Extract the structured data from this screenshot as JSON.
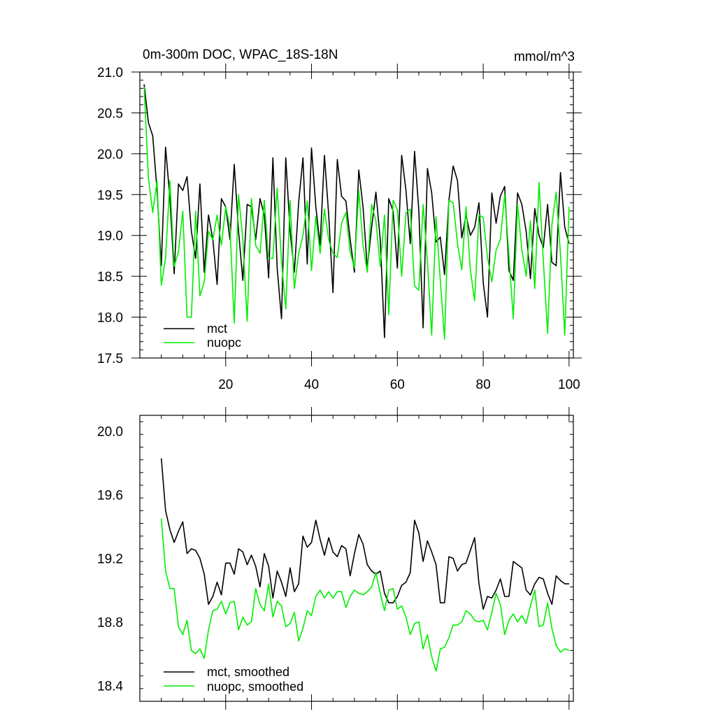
{
  "chart_data": [
    {
      "type": "line",
      "title": "0m-300m DOC, WPAC_18S-18N",
      "units": "mmol/m^3",
      "xlim": [
        0,
        101
      ],
      "ylim": [
        17.5,
        21.0
      ],
      "xticks": [
        20,
        40,
        60,
        80,
        100
      ],
      "yticks": [
        17.5,
        18.0,
        18.5,
        19.0,
        19.5,
        20.0,
        20.5,
        21.0
      ],
      "ytick_labels": [
        "17.5",
        "18.0",
        "18.5",
        "19.0",
        "19.5",
        "20.0",
        "20.5",
        "21.0"
      ],
      "legend_position": "bottom-left",
      "x": [
        1,
        2,
        3,
        4,
        5,
        6,
        7,
        8,
        9,
        10,
        11,
        12,
        13,
        14,
        15,
        16,
        17,
        18,
        19,
        20,
        21,
        22,
        23,
        24,
        25,
        26,
        27,
        28,
        29,
        30,
        31,
        32,
        33,
        34,
        35,
        36,
        37,
        38,
        39,
        40,
        41,
        42,
        43,
        44,
        45,
        46,
        47,
        48,
        49,
        50,
        51,
        52,
        53,
        54,
        55,
        56,
        57,
        58,
        59,
        60,
        61,
        62,
        63,
        64,
        65,
        66,
        67,
        68,
        69,
        70,
        71,
        72,
        73,
        74,
        75,
        76,
        77,
        78,
        79,
        80,
        81,
        82,
        83,
        84,
        85,
        86,
        87,
        88,
        89,
        90,
        91,
        92,
        93,
        94,
        95,
        96,
        97,
        98,
        99,
        100
      ],
      "series": [
        {
          "name": "mct",
          "color": "#000000",
          "values": [
            20.85,
            20.38,
            20.22,
            19.55,
            18.63,
            20.08,
            19.45,
            18.53,
            19.63,
            19.55,
            19.72,
            19.05,
            18.72,
            19.63,
            18.55,
            19.25,
            18.95,
            18.4,
            19.45,
            19.35,
            18.95,
            19.87,
            19.05,
            18.45,
            19.38,
            19.35,
            18.95,
            19.45,
            19.25,
            18.48,
            19.95,
            18.6,
            17.98,
            19.95,
            19.05,
            18.55,
            19.4,
            19.95,
            18.65,
            20.07,
            19.35,
            18.88,
            19.98,
            19.25,
            18.3,
            19.93,
            19.48,
            19.42,
            18.95,
            18.55,
            19.8,
            19.35,
            18.6,
            19.1,
            19.53,
            18.95,
            17.75,
            19.45,
            19.3,
            18.6,
            19.98,
            19.55,
            18.9,
            20.03,
            19.3,
            17.87,
            19.82,
            19.52,
            18.92,
            18.98,
            18.52,
            19.43,
            19.85,
            19.67,
            18.97,
            19.25,
            19.0,
            19.1,
            19.4,
            18.42,
            18.0,
            19.52,
            19.15,
            19.48,
            19.6,
            18.57,
            18.45,
            19.52,
            19.38,
            19.05,
            18.47,
            19.33,
            19.0,
            18.85,
            19.38,
            18.67,
            18.63,
            19.77,
            19.1,
            18.9
          ]
        },
        {
          "name": "nuopc",
          "color": "#00ee00",
          "values": [
            20.82,
            19.7,
            19.28,
            19.67,
            18.39,
            18.73,
            19.67,
            18.62,
            18.8,
            19.3,
            18.0,
            18.0,
            19.3,
            18.26,
            18.43,
            19.05,
            18.95,
            19.25,
            18.88,
            19.35,
            19.1,
            17.93,
            19.5,
            18.95,
            17.95,
            19.45,
            18.88,
            18.78,
            19.43,
            18.72,
            18.72,
            19.58,
            18.68,
            18.1,
            19.43,
            18.35,
            18.78,
            19.0,
            19.42,
            18.57,
            19.23,
            18.78,
            19.32,
            18.95,
            18.78,
            18.73,
            19.15,
            19.28,
            18.8,
            18.6,
            19.55,
            18.88,
            18.55,
            19.38,
            19.18,
            18.62,
            19.25,
            18.03,
            19.43,
            19.32,
            18.5,
            19.28,
            19.32,
            18.38,
            18.33,
            19.38,
            18.68,
            17.78,
            19.23,
            18.45,
            17.73,
            19.43,
            19.4,
            18.9,
            18.58,
            19.35,
            18.58,
            18.2,
            19.25,
            19.22,
            18.73,
            18.43,
            18.82,
            18.95,
            19.5,
            18.75,
            17.98,
            19.38,
            18.83,
            18.5,
            19.18,
            18.35,
            19.65,
            18.7,
            17.8,
            19.13,
            19.53,
            18.77,
            17.78,
            19.35
          ]
        }
      ]
    },
    {
      "type": "line",
      "title": "",
      "xlim": [
        0,
        101
      ],
      "ylim": [
        18.3,
        20.1
      ],
      "xticks": [
        20,
        40,
        60,
        80,
        100
      ],
      "yticks": [
        18.4,
        18.8,
        19.2,
        19.6,
        20.0
      ],
      "ytick_labels": [
        "18.4",
        "18.8",
        "19.2",
        "19.6",
        "20.0"
      ],
      "legend_position": "bottom-left",
      "x": [
        5,
        6,
        7,
        8,
        9,
        10,
        11,
        12,
        13,
        14,
        15,
        16,
        17,
        18,
        19,
        20,
        21,
        22,
        23,
        24,
        25,
        26,
        27,
        28,
        29,
        30,
        31,
        32,
        33,
        34,
        35,
        36,
        37,
        38,
        39,
        40,
        41,
        42,
        43,
        44,
        45,
        46,
        47,
        48,
        49,
        50,
        51,
        52,
        53,
        54,
        55,
        56,
        57,
        58,
        59,
        60,
        61,
        62,
        63,
        64,
        65,
        66,
        67,
        68,
        69,
        70,
        71,
        72,
        73,
        74,
        75,
        76,
        77,
        78,
        79,
        80,
        81,
        82,
        83,
        84,
        85,
        86,
        87,
        88,
        89,
        90,
        91,
        92,
        93,
        94,
        95,
        96,
        97,
        98,
        99,
        100
      ],
      "series": [
        {
          "name": "mct, smoothed",
          "color": "#000000",
          "values": [
            19.83,
            19.5,
            19.38,
            19.3,
            19.37,
            19.43,
            19.23,
            19.26,
            19.25,
            19.2,
            19.1,
            18.91,
            18.96,
            19.05,
            18.97,
            19.17,
            19.17,
            19.1,
            19.26,
            19.24,
            19.16,
            19.22,
            19.15,
            19.02,
            19.23,
            19.15,
            18.95,
            19.12,
            19.05,
            18.96,
            19.14,
            18.99,
            19.04,
            19.34,
            19.27,
            19.3,
            19.44,
            19.32,
            19.22,
            19.33,
            19.24,
            19.21,
            19.28,
            19.26,
            19.09,
            19.23,
            19.35,
            19.29,
            19.16,
            19.12,
            19.1,
            19.12,
            18.98,
            18.92,
            18.92,
            18.96,
            19.03,
            19.05,
            19.11,
            19.44,
            19.36,
            19.18,
            19.31,
            19.24,
            19.16,
            18.92,
            18.92,
            19.21,
            19.2,
            19.12,
            19.16,
            19.17,
            19.25,
            19.33,
            19.04,
            18.88,
            18.96,
            18.95,
            19.0,
            19.07,
            18.96,
            18.96,
            19.18,
            19.16,
            19.14,
            19.0,
            18.97,
            19.04,
            19.08,
            19.07,
            18.98,
            18.91,
            19.09,
            19.06,
            19.04,
            19.04
          ]
        },
        {
          "name": "nuopc, smoothed",
          "color": "#00ee00",
          "values": [
            19.45,
            19.12,
            19.01,
            19.01,
            18.77,
            18.72,
            18.81,
            18.62,
            18.6,
            18.63,
            18.57,
            18.75,
            18.87,
            18.88,
            18.93,
            18.85,
            18.92,
            18.93,
            18.75,
            18.83,
            18.78,
            18.8,
            19.01,
            18.91,
            18.87,
            19.04,
            18.83,
            18.93,
            18.9,
            18.77,
            18.79,
            18.86,
            18.68,
            18.76,
            18.87,
            18.84,
            18.96,
            19.0,
            18.95,
            18.99,
            18.95,
            18.99,
            18.99,
            18.89,
            18.96,
            19.0,
            18.98,
            18.97,
            18.99,
            19.02,
            19.11,
            18.98,
            18.87,
            19.0,
            19.01,
            18.88,
            18.9,
            18.83,
            18.72,
            18.79,
            18.8,
            18.63,
            18.72,
            18.58,
            18.49,
            18.63,
            18.64,
            18.7,
            18.78,
            18.78,
            18.8,
            18.87,
            18.85,
            18.81,
            18.8,
            18.81,
            18.75,
            18.86,
            18.98,
            18.91,
            18.72,
            18.81,
            18.85,
            18.8,
            18.84,
            18.79,
            18.9,
            19.0,
            18.77,
            18.78,
            18.92,
            18.76,
            18.65,
            18.61,
            18.63,
            18.62
          ]
        }
      ]
    }
  ]
}
